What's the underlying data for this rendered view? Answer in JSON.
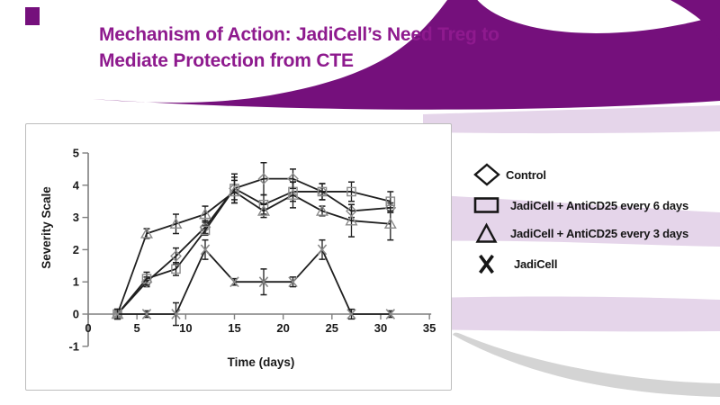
{
  "slide": {
    "title_line1": "Mechanism of Action: JadiCell’s Need Treg to",
    "title_line2": "Mediate Protection from CTE"
  },
  "colors": {
    "title_purple": "#8E1A8E",
    "swoosh_purple": "#75107C",
    "ribbon_lavender": "#E5D5EA",
    "swoosh_gray": "#D4D4D4"
  },
  "legend": [
    {
      "marker": "diamond",
      "label": "Control"
    },
    {
      "marker": "square",
      "label": "JadiCell + AntiCD25 every 6 days"
    },
    {
      "marker": "triangle",
      "label": "JadiCell + AntiCD25 every 3 days"
    },
    {
      "marker": "x",
      "label": "JadiCell"
    }
  ],
  "chart_data": {
    "type": "line",
    "title": "",
    "xlabel": "Time (days)",
    "ylabel": "Severity Scale",
    "xlim": [
      0,
      35
    ],
    "ylim": [
      -1,
      5
    ],
    "x_ticks": [
      0,
      5,
      10,
      15,
      20,
      25,
      30,
      35
    ],
    "y_ticks": [
      -1,
      0,
      1,
      2,
      3,
      4,
      5
    ],
    "grid": false,
    "error_bars": true,
    "legend_position": "right-outside",
    "x": [
      3,
      6,
      9,
      12,
      15,
      18,
      21,
      24,
      27,
      31
    ],
    "series": [
      {
        "name": "Control",
        "marker": "diamond",
        "values": [
          0,
          1.0,
          1.8,
          2.7,
          3.9,
          4.2,
          4.2,
          3.8,
          3.2,
          3.3
        ],
        "errors": [
          0.15,
          0.15,
          0.25,
          0.2,
          0.45,
          0.5,
          0.3,
          0.25,
          0.2,
          0.15
        ]
      },
      {
        "name": "JadiCell + AntiCD25 every 6 days",
        "marker": "square",
        "values": [
          0,
          1.1,
          1.4,
          2.6,
          3.9,
          3.4,
          3.8,
          3.8,
          3.8,
          3.5
        ],
        "errors": [
          0.15,
          0.2,
          0.2,
          0.15,
          0.35,
          0.3,
          0.3,
          0.25,
          0.3,
          0.3
        ]
      },
      {
        "name": "JadiCell + AntiCD25 every 3 days",
        "marker": "triangle",
        "values": [
          0,
          2.5,
          2.8,
          3.1,
          3.8,
          3.2,
          3.7,
          3.2,
          2.9,
          2.8
        ],
        "errors": [
          0.15,
          0.15,
          0.3,
          0.25,
          0.35,
          0.2,
          0.4,
          0.15,
          0.5,
          0.5
        ]
      },
      {
        "name": "JadiCell",
        "marker": "x",
        "values": [
          0,
          0,
          0,
          2.0,
          1.0,
          1.0,
          1.0,
          2.0,
          0,
          0
        ],
        "errors": [
          0.15,
          0.1,
          0.35,
          0.3,
          0.1,
          0.4,
          0.15,
          0.3,
          0.15,
          0.1
        ]
      }
    ],
    "style": {
      "line_color": "#1f1f1f",
      "marker_color": "#8a8a8a",
      "axis_color": "#7f7f7f"
    }
  }
}
